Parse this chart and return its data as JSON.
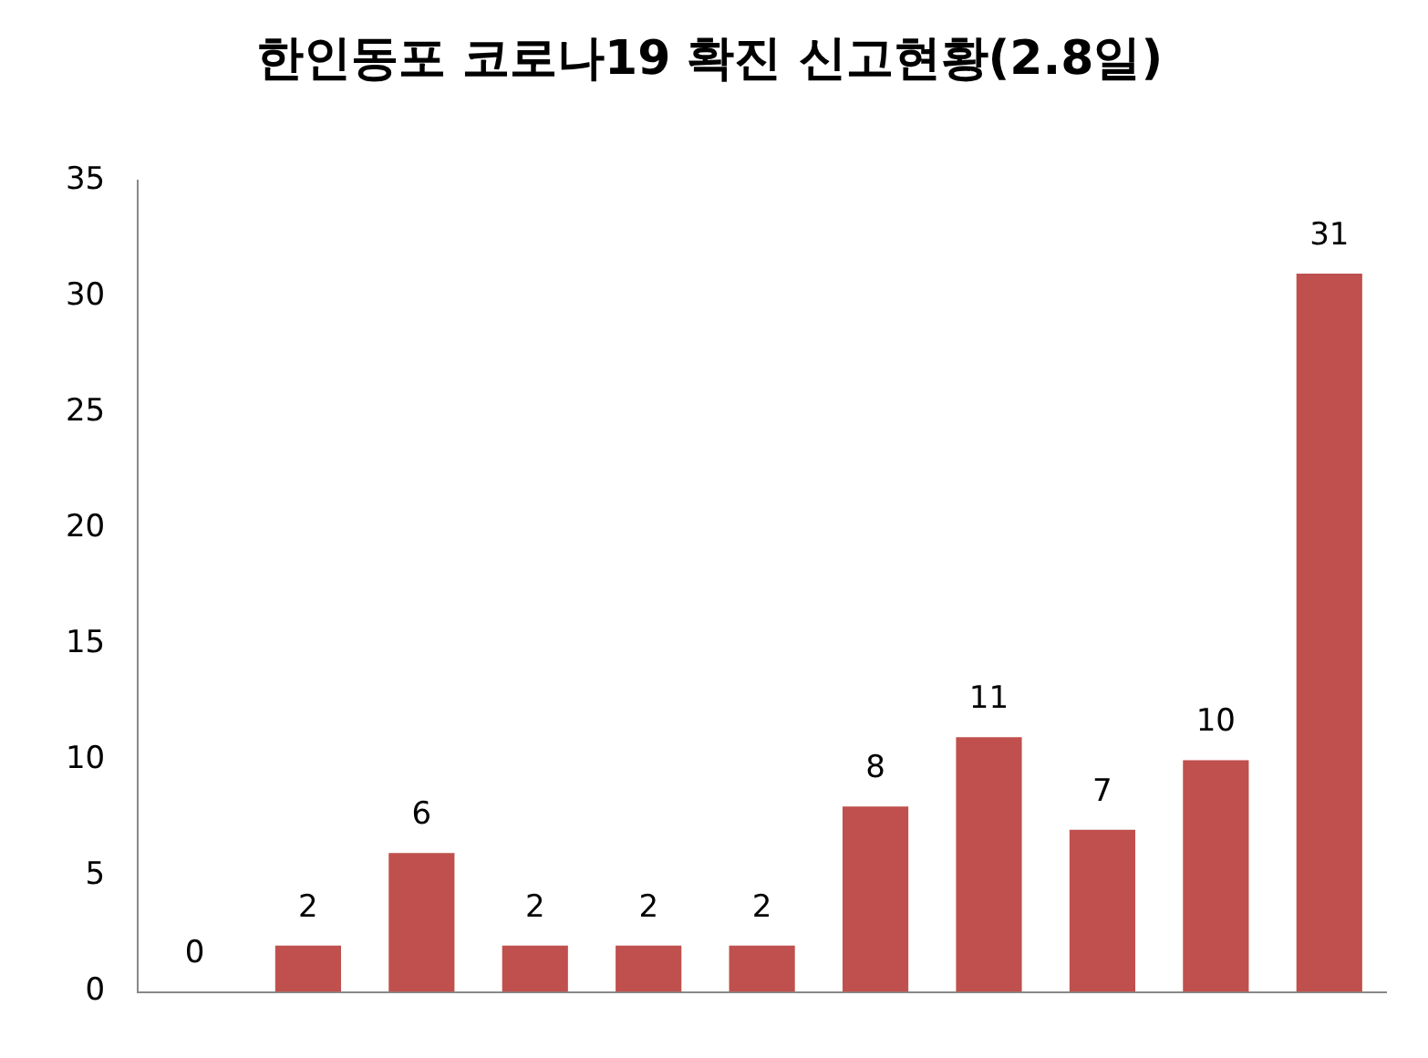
{
  "chart_data": {
    "type": "bar",
    "title": "한인동포 코로나19 확진 신고현황(2.8일)",
    "categories": [
      null,
      null,
      null,
      null,
      null,
      null,
      null,
      null,
      null,
      null,
      null
    ],
    "values": [
      0,
      2,
      6,
      2,
      2,
      2,
      8,
      11,
      7,
      10,
      31
    ],
    "color": "#c0504d",
    "ylim": [
      0,
      35
    ],
    "yticks": [
      0,
      5,
      10,
      15,
      20,
      25,
      30,
      35
    ],
    "grid": false,
    "legend": false,
    "tick_labels": "y",
    "data_labels": true
  }
}
